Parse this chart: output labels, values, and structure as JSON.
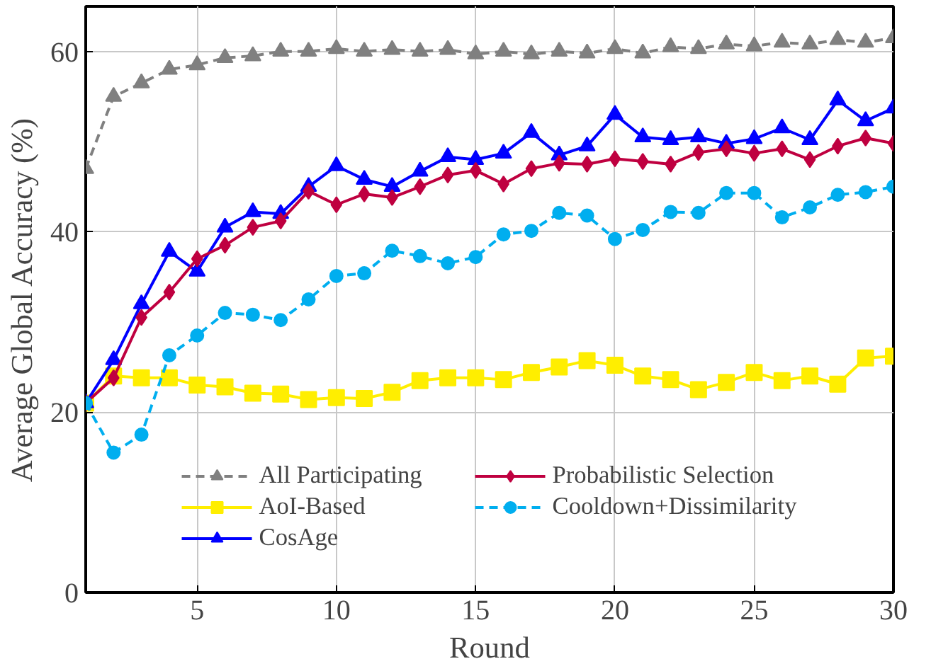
{
  "chart_data": {
    "type": "line",
    "xlabel": "Round",
    "ylabel": "Average Global Accuracy (%)",
    "x": [
      1,
      2,
      3,
      4,
      5,
      6,
      7,
      8,
      9,
      10,
      11,
      12,
      13,
      14,
      15,
      16,
      17,
      18,
      19,
      20,
      21,
      22,
      23,
      24,
      25,
      26,
      27,
      28,
      29,
      30
    ],
    "xlim": [
      1,
      30
    ],
    "xticks": [
      5,
      10,
      15,
      20,
      25,
      30
    ],
    "ylim": [
      0,
      65
    ],
    "yticks": [
      0,
      20,
      40,
      60
    ],
    "grid": true,
    "legend": "bottom",
    "series": [
      {
        "name": "All Participating",
        "color": "#808080",
        "marker": "triangle",
        "line_style": "dashed",
        "values": [
          47,
          55,
          56.5,
          58,
          58.5,
          59.3,
          59.5,
          60,
          60,
          60.3,
          60,
          60.2,
          60,
          60.2,
          59.7,
          60,
          59.7,
          60,
          59.8,
          60.3,
          59.8,
          60.5,
          60.3,
          60.8,
          60.6,
          61,
          60.8,
          61.3,
          61,
          61.5
        ]
      },
      {
        "name": "AoI-Based",
        "color": "#ffee00",
        "marker": "square",
        "line_style": "solid",
        "values": [
          21,
          24,
          23.8,
          23.8,
          23,
          22.8,
          22.1,
          22,
          21.4,
          21.6,
          21.5,
          22.2,
          23.5,
          23.8,
          23.8,
          23.6,
          24.4,
          25,
          25.7,
          25.2,
          24,
          23.6,
          22.5,
          23.3,
          24.4,
          23.5,
          24,
          23.1,
          26,
          26.2
        ]
      },
      {
        "name": "CosAge",
        "color": "#0000ff",
        "marker": "triangle",
        "line_style": "solid",
        "values": [
          21,
          25.8,
          32,
          37.8,
          35.6,
          40.5,
          42.2,
          42,
          45,
          47.3,
          45.8,
          45,
          46.7,
          48.3,
          48,
          48.7,
          51,
          48.5,
          49.5,
          53,
          50.5,
          50.2,
          50.5,
          49.8,
          50.3,
          51.5,
          50.2,
          54.6,
          52.3,
          53.7
        ]
      },
      {
        "name": "Probabilistic Selection",
        "color": "#bf0040",
        "marker": "diamond",
        "line_style": "solid",
        "values": [
          21,
          23.8,
          30.5,
          33.3,
          37,
          38.5,
          40.5,
          41.2,
          44.5,
          43,
          44.2,
          43.8,
          45,
          46.3,
          46.8,
          45.3,
          47,
          47.6,
          47.5,
          48.1,
          47.8,
          47.5,
          48.8,
          49.2,
          48.7,
          49.2,
          48,
          49.5,
          50.4,
          49.8
        ]
      },
      {
        "name": "Cooldown+Dissimilarity",
        "color": "#00aeef",
        "marker": "circle",
        "line_style": "dashed",
        "values": [
          21,
          15.5,
          17.5,
          26.3,
          28.5,
          31,
          30.8,
          30.2,
          32.5,
          35.1,
          35.4,
          37.9,
          37.3,
          36.5,
          37.2,
          39.7,
          40.1,
          42.1,
          41.8,
          39.2,
          40.2,
          42.2,
          42.1,
          44.3,
          44.3,
          41.6,
          42.7,
          44.1,
          44.4,
          45
        ]
      }
    ]
  }
}
